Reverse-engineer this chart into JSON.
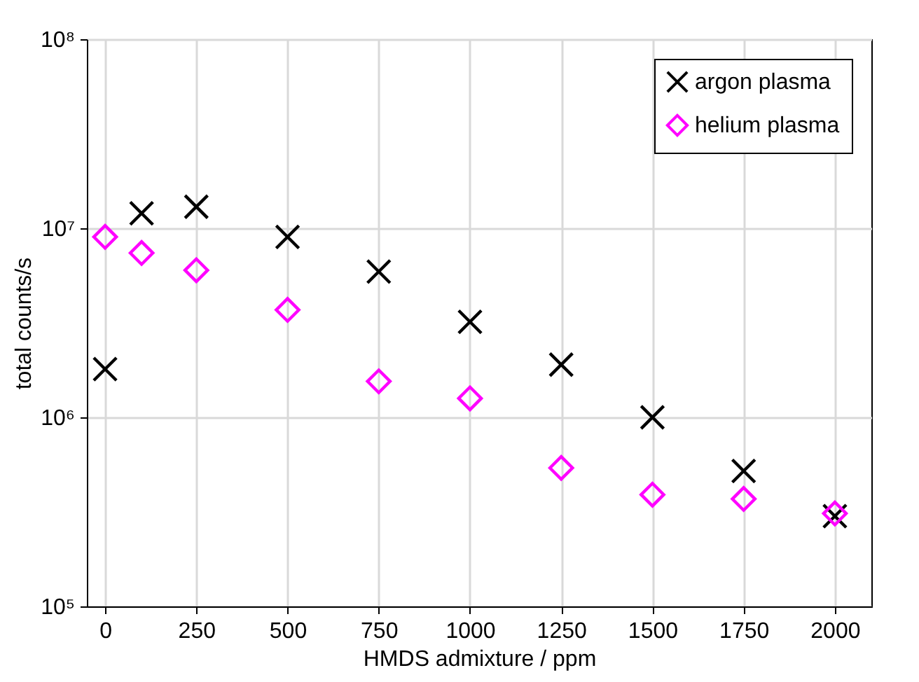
{
  "chart_data": {
    "type": "scatter",
    "xlabel": "HMDS admixture / ppm",
    "ylabel": "total counts/s",
    "x": [
      0,
      100,
      250,
      500,
      750,
      1000,
      1250,
      1500,
      1750,
      2000
    ],
    "series": [
      {
        "name": "argon plasma",
        "color": "#000000",
        "marker": "cross",
        "values": [
          1800000,
          12000000,
          13000000,
          9000000,
          5900000,
          3200000,
          1900000,
          1000000,
          520000,
          300000
        ]
      },
      {
        "name": "helium plasma",
        "color": "#ff00ff",
        "marker": "diamond",
        "values": [
          9000000,
          7400000,
          6000000,
          3700000,
          1550000,
          1260000,
          540000,
          390000,
          370000,
          310000
        ]
      }
    ],
    "log": "y",
    "xlim": [
      -50,
      2100
    ],
    "xticks": [
      0,
      250,
      500,
      750,
      1000,
      1250,
      1500,
      1750,
      2000
    ],
    "ylim": [
      100000,
      100000000
    ],
    "yticks": [
      {
        "value": 100000,
        "label": "10⁵"
      },
      {
        "value": 1000000,
        "label": "10⁶"
      },
      {
        "value": 10000000,
        "label": "10⁷"
      },
      {
        "value": 100000000,
        "label": "10⁸"
      }
    ],
    "grid": true,
    "legend": "top right"
  }
}
